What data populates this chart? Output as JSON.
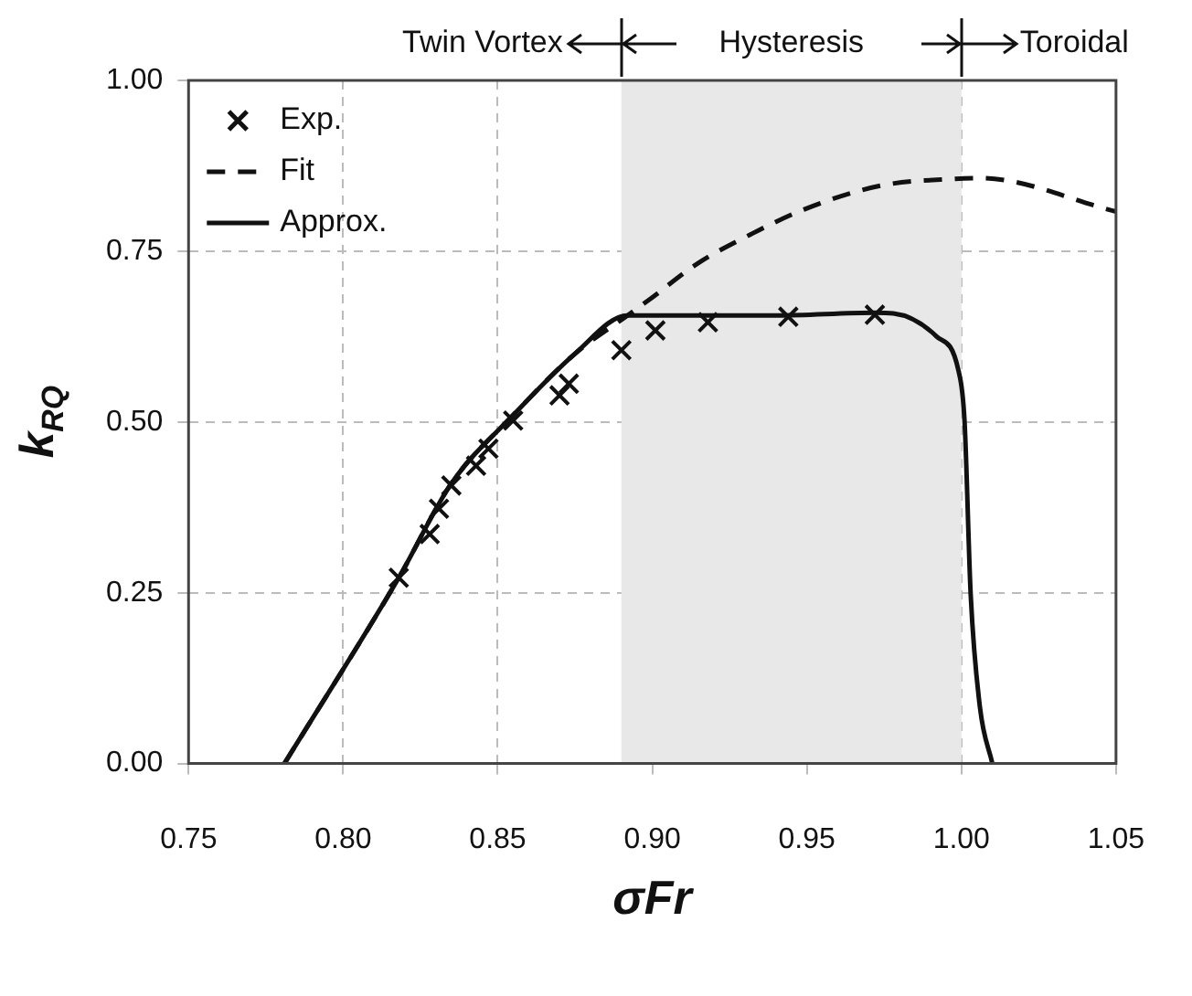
{
  "chart_data": {
    "type": "scatter",
    "xlabel": "σFr",
    "ylabel": "k$_{RQ}$",
    "xlim": [
      0.75,
      1.05
    ],
    "xticks": [
      {
        "value": 0.75,
        "label": "0.75"
      },
      {
        "value": 0.8,
        "label": "0.80"
      },
      {
        "value": 0.85,
        "label": "0.85"
      },
      {
        "value": 0.9,
        "label": "0.90"
      },
      {
        "value": 0.95,
        "label": "0.95"
      },
      {
        "value": 1.0,
        "label": "1.00"
      },
      {
        "value": 1.05,
        "label": "1.05"
      }
    ],
    "ylim": [
      0,
      1
    ],
    "yticks": [
      {
        "value": 0,
        "label": "0.00"
      },
      {
        "value": 0.25,
        "label": "0.25"
      },
      {
        "value": 0.5,
        "label": "0.50"
      },
      {
        "value": 0.75,
        "label": "0.75"
      },
      {
        "value": 1,
        "label": "1.00"
      }
    ],
    "grid": true,
    "legend": "top left",
    "bands": [
      {
        "axis": "x",
        "from": 0.89,
        "to": 1.0,
        "color": "#e8e8e8"
      }
    ],
    "annotations": [
      "Twin Vortex",
      "Hysteresis",
      "Toroidal"
    ],
    "series": [
      {
        "name": "Exp.",
        "type": "scatter",
        "marker": "cross",
        "color": "#111111",
        "x": [
          0.818,
          0.828,
          0.831,
          0.835,
          0.843,
          0.847,
          0.855,
          0.87,
          0.873,
          0.89,
          0.901,
          0.918,
          0.944,
          0.972
        ],
        "values": [
          0.272,
          0.336,
          0.373,
          0.407,
          0.436,
          0.461,
          0.502,
          0.539,
          0.556,
          0.605,
          0.634,
          0.646,
          0.654,
          0.657
        ]
      },
      {
        "name": "Fit",
        "type": "line",
        "line_style": "dashed",
        "marker": "none",
        "color": "#111111",
        "x": [
          0.781,
          0.818,
          0.835,
          0.855,
          0.875,
          0.892,
          0.899,
          0.915,
          0.932,
          0.949,
          0.974,
          0.998,
          1.006,
          1.05
        ],
        "values": [
          0,
          0.272,
          0.41,
          0.51,
          0.6,
          0.656,
          0.679,
          0.733,
          0.775,
          0.811,
          0.846,
          0.856,
          0.857,
          0.808
        ]
      },
      {
        "name": "Approx.",
        "type": "line",
        "line_style": "solid",
        "marker": "none",
        "color": "#111111",
        "x": [
          0.781,
          0.818,
          0.835,
          0.855,
          0.875,
          0.892,
          0.94,
          0.972,
          0.978,
          0.992,
          0.999,
          1.001,
          1.003,
          1.006,
          1.01
        ],
        "values": [
          0,
          0.272,
          0.41,
          0.51,
          0.6,
          0.656,
          0.656,
          0.66,
          0.659,
          0.625,
          0.576,
          0.502,
          0.247,
          0.082,
          0
        ]
      }
    ]
  }
}
